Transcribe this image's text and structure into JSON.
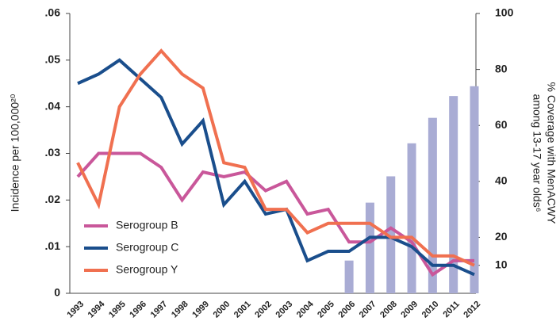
{
  "chart_data": {
    "type": "line",
    "y_label": "Incidence per 100,000²⁰",
    "y2_label": [
      "% Coverage with MenACWY",
      "among 13-17 year olds⁶"
    ],
    "categories": [
      "1993",
      "1994",
      "1995",
      "1996",
      "1997",
      "1998",
      "1999",
      "2000",
      "2001",
      "2002",
      "2003",
      "2004",
      "2005",
      "2006",
      "2007",
      "2008",
      "2009",
      "2010",
      "2011",
      "2012"
    ],
    "ylim": [
      0,
      0.06
    ],
    "yticks": [
      0,
      {
        "value": 0.01,
        "label": ".01"
      },
      {
        "value": 0.02,
        "label": ".02"
      },
      {
        "value": 0.03,
        "label": ".03"
      },
      {
        "value": 0.04,
        "label": ".04"
      },
      {
        "value": 0.05,
        "label": ".05"
      },
      {
        "value": 0.06,
        "label": ".06"
      }
    ],
    "y2lim": [
      0,
      100
    ],
    "y2ticks": [
      10,
      20,
      40,
      60,
      80,
      100
    ],
    "series": [
      {
        "name": "Coverage",
        "type": "bar",
        "axis": "y2",
        "color": "#a9acd4",
        "values": [
          null,
          null,
          null,
          null,
          null,
          null,
          null,
          null,
          null,
          null,
          null,
          null,
          null,
          11.7,
          32.4,
          41.8,
          53.6,
          62.7,
          70.5,
          74.0
        ]
      },
      {
        "name": "Serogroup B",
        "color": "#c9579a",
        "values": [
          0.025,
          0.03,
          0.03,
          0.03,
          0.027,
          0.02,
          0.026,
          0.025,
          0.026,
          0.022,
          0.024,
          0.017,
          0.018,
          0.011,
          0.011,
          0.014,
          0.011,
          0.004,
          0.007,
          0.007
        ]
      },
      {
        "name": "Serogroup C",
        "color": "#1a4e8c",
        "values": [
          0.045,
          0.047,
          0.05,
          0.046,
          0.042,
          0.032,
          0.037,
          0.019,
          0.024,
          0.017,
          0.018,
          0.007,
          0.009,
          0.009,
          0.012,
          0.012,
          0.01,
          0.006,
          0.006,
          0.004
        ]
      },
      {
        "name": "Serogroup Y",
        "color": "#f07050",
        "values": [
          0.028,
          0.019,
          0.04,
          0.047,
          0.052,
          0.047,
          0.044,
          0.028,
          0.027,
          0.018,
          0.018,
          0.013,
          0.015,
          0.015,
          0.015,
          0.012,
          0.012,
          0.008,
          0.008,
          0.006
        ]
      }
    ]
  }
}
